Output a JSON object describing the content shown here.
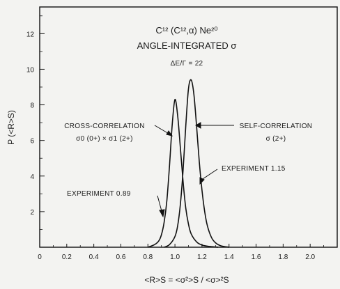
{
  "chart_data": {
    "type": "line",
    "title": "C¹² (C¹²,α) Ne²⁰",
    "subtitle": "ANGLE-INTEGRATED σ",
    "parameter": "ΔE/Γ = 22",
    "xlabel": "<R>S = <σ²>S / <σ>²S",
    "ylabel": "P (<R>S)",
    "xlim": [
      0,
      2.2
    ],
    "ylim": [
      0,
      13.5
    ],
    "grid": false,
    "x_ticks": [
      "0",
      "0.2",
      "0.4",
      "0.6",
      "0.8",
      "1.0",
      "1.2",
      "1.4",
      "1.6",
      "1.8",
      "2.0"
    ],
    "y_ticks": [
      "2",
      "4",
      "6",
      "8",
      "10",
      "12"
    ],
    "series": [
      {
        "name": "CROSS-CORRELATION σ0 (0+) × σ1 (2+)",
        "x": [
          0.8,
          0.85,
          0.88,
          0.9,
          0.92,
          0.94,
          0.96,
          0.98,
          1.0,
          1.02,
          1.04,
          1.06,
          1.08,
          1.1,
          1.12,
          1.16,
          1.2,
          1.26,
          1.32
        ],
        "y": [
          0.0,
          0.15,
          0.35,
          0.7,
          1.4,
          2.6,
          4.6,
          6.9,
          8.3,
          7.4,
          5.6,
          3.7,
          2.2,
          1.3,
          0.75,
          0.3,
          0.12,
          0.04,
          0.0
        ]
      },
      {
        "name": "SELF-CORRELATION σ (2+)",
        "x": [
          0.92,
          0.96,
          1.0,
          1.02,
          1.04,
          1.06,
          1.08,
          1.1,
          1.12,
          1.14,
          1.16,
          1.18,
          1.2,
          1.22,
          1.24,
          1.27,
          1.3,
          1.34,
          1.4
        ],
        "y": [
          0.0,
          0.15,
          0.6,
          1.2,
          2.4,
          4.3,
          6.8,
          8.9,
          9.4,
          8.6,
          6.8,
          4.8,
          3.2,
          2.0,
          1.2,
          0.55,
          0.25,
          0.08,
          0.0
        ]
      }
    ],
    "annotations": {
      "cross_line1": "CROSS-CORRELATION",
      "cross_line2": "σ0 (0+) × σ1 (2+)",
      "self_line1": "SELF-CORRELATION",
      "self_line2": "σ (2+)",
      "exp_cross": "EXPERIMENT 0.89",
      "exp_self": "EXPERIMENT 1.15"
    },
    "experiment_markers": [
      0.89,
      1.15
    ]
  }
}
